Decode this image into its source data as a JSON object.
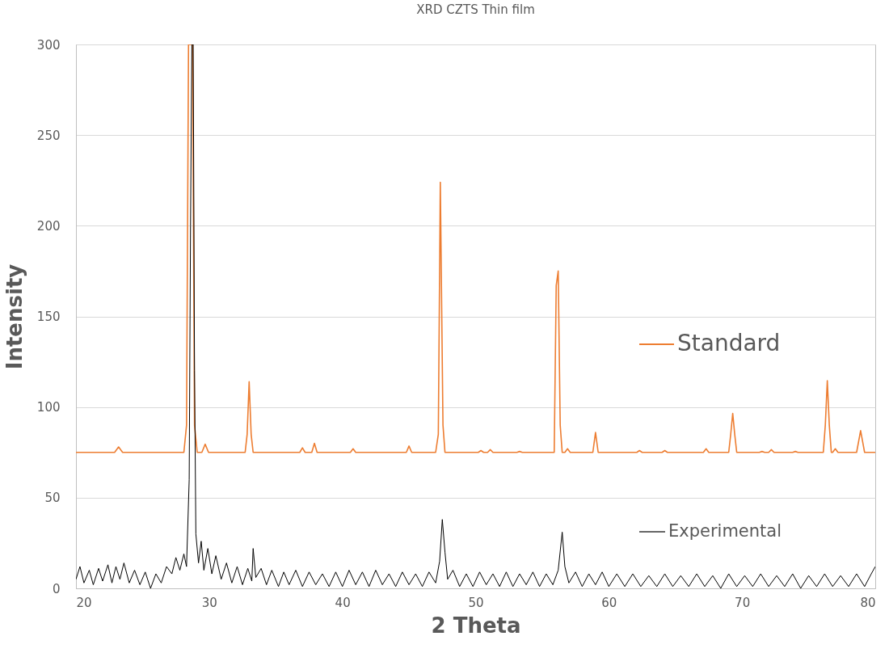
{
  "chart_data": {
    "type": "line",
    "title": "XRD CZTS Thin film",
    "xlabel": "2 Theta",
    "ylabel": "Intensity",
    "xlim": [
      20,
      80
    ],
    "xticks": [
      20,
      30,
      40,
      50,
      60,
      70,
      80
    ],
    "ylim": [
      0,
      300
    ],
    "yticks": [
      0,
      50,
      100,
      150,
      200,
      250,
      300
    ],
    "grid": "y",
    "legend": "right",
    "marker": "none",
    "line_style": "solid",
    "series": [
      {
        "name": "Standard",
        "color": "#ed7d31",
        "x": [
          20,
          22.9,
          23.2,
          23.5,
          28.1,
          28.3,
          28.45,
          28.75,
          28.9,
          29.1,
          29.45,
          29.7,
          29.95,
          32.7,
          32.85,
          33.0,
          33.15,
          33.3,
          36.8,
          37.0,
          37.2,
          37.7,
          37.9,
          38.1,
          40.6,
          40.8,
          41.0,
          44.8,
          45.0,
          45.2,
          47.0,
          47.2,
          47.35,
          47.55,
          47.7,
          50.2,
          50.4,
          50.6,
          50.9,
          51.1,
          51.3,
          53.1,
          53.3,
          53.5,
          55.9,
          56.05,
          56.2,
          56.35,
          56.5,
          56.7,
          56.9,
          57.1,
          58.8,
          59.0,
          59.2,
          62.1,
          62.3,
          62.5,
          64.0,
          64.2,
          64.4,
          67.1,
          67.3,
          67.5,
          69.0,
          69.15,
          69.3,
          69.45,
          69.6,
          71.3,
          71.5,
          71.7,
          72.0,
          72.2,
          72.4,
          73.8,
          74.0,
          74.2,
          76.1,
          76.25,
          76.4,
          76.55,
          76.7,
          76.8,
          77.0,
          77.2,
          78.6,
          78.9,
          79.2,
          80
        ],
        "values": [
          75,
          75,
          78,
          75,
          75,
          90,
          300,
          300,
          90,
          75,
          75,
          79.5,
          75,
          75,
          85,
          114,
          85,
          75,
          75,
          77.5,
          75,
          75,
          80,
          75,
          75,
          77,
          75,
          75,
          78.5,
          75,
          75,
          85,
          224,
          90,
          75,
          75,
          76,
          75,
          75,
          76.5,
          75,
          75,
          75.5,
          75,
          75,
          167,
          175,
          90,
          75,
          75,
          77,
          75,
          75,
          86,
          75,
          75,
          76,
          75,
          75,
          76,
          75,
          75,
          77,
          75,
          75,
          85,
          96.5,
          85,
          75,
          75,
          75.5,
          75,
          75,
          76.5,
          75,
          75,
          75.5,
          75,
          75,
          90,
          114.5,
          90,
          75,
          75,
          77,
          75,
          75,
          87,
          75,
          75
        ]
      },
      {
        "name": "Experimental",
        "color": "#000000",
        "x": [
          20,
          20.3,
          20.6,
          21,
          21.3,
          21.7,
          22,
          22.4,
          22.7,
          23,
          23.3,
          23.6,
          24,
          24.4,
          24.8,
          25.2,
          25.6,
          26,
          26.4,
          26.8,
          27.2,
          27.5,
          27.8,
          28.1,
          28.3,
          28.5,
          28.6,
          28.7,
          28.8,
          28.9,
          29.0,
          29.2,
          29.4,
          29.6,
          29.9,
          30.2,
          30.5,
          30.9,
          31.3,
          31.7,
          32.1,
          32.5,
          32.9,
          33.2,
          33.3,
          33.5,
          33.9,
          34.3,
          34.7,
          35.2,
          35.6,
          36,
          36.5,
          37,
          37.5,
          38,
          38.5,
          39,
          39.5,
          40,
          40.5,
          41,
          41.5,
          42,
          42.5,
          43,
          43.5,
          44,
          44.5,
          45,
          45.5,
          46,
          46.5,
          47,
          47.3,
          47.5,
          47.7,
          47.9,
          48.3,
          48.8,
          49.3,
          49.8,
          50.3,
          50.8,
          51.3,
          51.8,
          52.3,
          52.8,
          53.3,
          53.8,
          54.3,
          54.8,
          55.3,
          55.8,
          56.2,
          56.5,
          56.7,
          57,
          57.5,
          58,
          58.5,
          59,
          59.5,
          60,
          60.6,
          61.2,
          61.8,
          62.4,
          63,
          63.6,
          64.2,
          64.8,
          65.4,
          66,
          66.6,
          67.2,
          67.8,
          68.4,
          69,
          69.6,
          70.2,
          70.8,
          71.4,
          72,
          72.6,
          73.2,
          73.8,
          74.4,
          75,
          75.6,
          76.2,
          76.8,
          77.4,
          78,
          78.6,
          79.2,
          79.7,
          80
        ],
        "values": [
          5,
          12,
          3,
          10,
          2,
          11,
          4,
          13,
          3,
          12,
          5,
          14,
          3,
          10,
          2,
          9,
          0,
          8,
          3,
          12,
          8,
          17,
          10,
          19,
          12,
          60,
          200,
          300,
          300,
          120,
          30,
          14,
          26,
          10,
          22,
          8,
          18,
          5,
          14,
          3,
          12,
          2,
          11,
          4,
          22,
          6,
          11,
          2,
          10,
          1,
          9,
          2,
          10,
          1,
          9,
          2,
          8,
          1,
          9,
          1,
          10,
          2,
          9,
          1,
          10,
          2,
          8,
          1,
          9,
          2,
          8,
          1,
          9,
          3,
          15,
          38,
          20,
          5,
          10,
          1,
          8,
          1,
          9,
          2,
          8,
          1,
          9,
          1,
          8,
          2,
          9,
          1,
          8,
          2,
          10,
          31,
          12,
          3,
          9,
          1,
          8,
          2,
          9,
          1,
          8,
          1,
          8,
          1,
          7,
          1,
          8,
          1,
          7,
          1,
          8,
          1,
          7,
          0,
          8,
          1,
          7,
          1,
          8,
          1,
          7,
          1,
          8,
          0,
          7,
          1,
          8,
          1,
          7,
          1,
          8,
          1,
          8,
          12
        ]
      }
    ]
  }
}
